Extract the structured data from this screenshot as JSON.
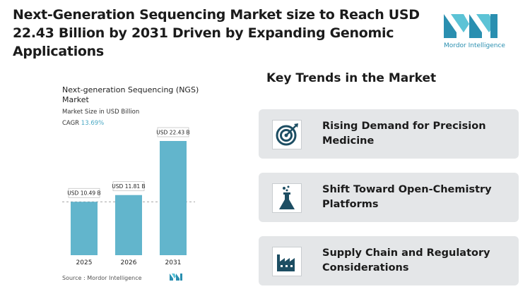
{
  "header": {
    "title": "Next-Generation Sequencing Market size to Reach USD 22.43 Billion by 2031 Driven by Expanding Genomic Applications",
    "logo_text": "Mordor Intelligence"
  },
  "chart_data": {
    "type": "bar",
    "title": "Next-generation Sequencing (NGS) Market",
    "subtitle": "Market Size in USD Billion",
    "cagr_label": "CAGR",
    "cagr_value": "13.69%",
    "source": "Source : Mordor Intelligence",
    "categories": [
      "2025",
      "2026",
      "2031"
    ],
    "values": [
      10.49,
      11.81,
      22.43
    ],
    "value_labels": [
      "USD 10.49 B",
      "USD 11.81 B",
      "USD 22.43 B"
    ],
    "color": "#62b5cc"
  },
  "trends": {
    "title": "Key Trends in the Market",
    "items": [
      "Rising Demand for Precision Medicine",
      "Shift Toward Open-Chemistry Platforms",
      "Supply Chain and Regulatory Considerations"
    ]
  }
}
